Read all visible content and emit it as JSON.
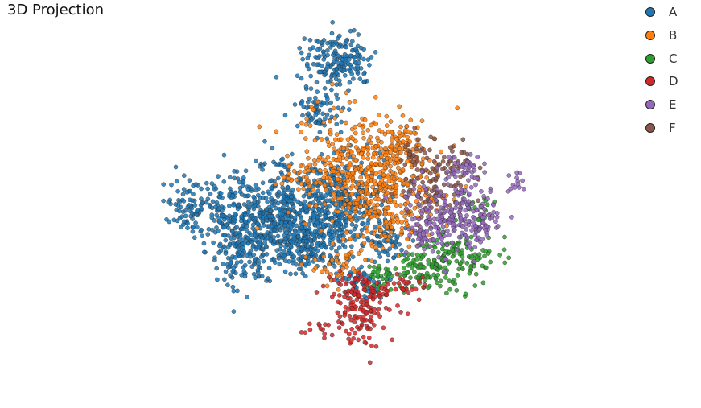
{
  "chart_data": {
    "type": "scatter",
    "title": "3D Projection",
    "legend_position": "top-right",
    "grid": false,
    "axes_visible": false,
    "series": [
      {
        "name": "A",
        "color": "#1f77b4"
      },
      {
        "name": "B",
        "color": "#ff7f0e"
      },
      {
        "name": "C",
        "color": "#2ca02c"
      },
      {
        "name": "D",
        "color": "#d62728"
      },
      {
        "name": "E",
        "color": "#9467bd"
      },
      {
        "name": "F",
        "color": "#8c564b"
      }
    ]
  }
}
